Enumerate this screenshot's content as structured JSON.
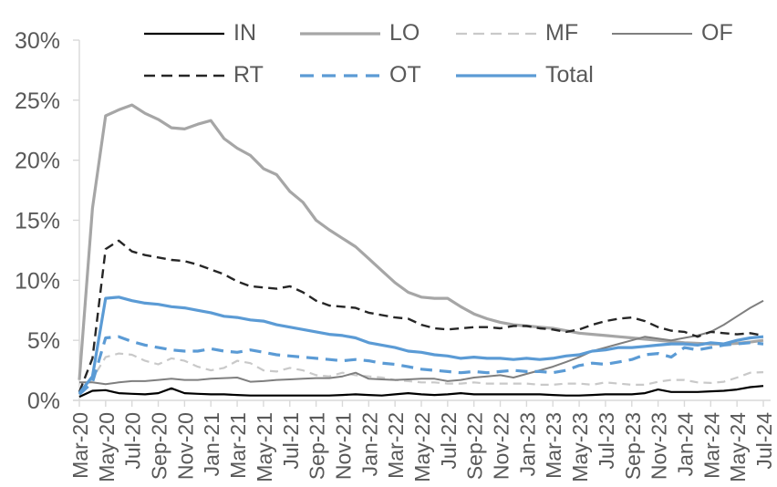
{
  "background": "#FFFFFF",
  "chart_data": {
    "type": "line",
    "title": "",
    "xlabel": "",
    "ylabel": "",
    "grid": false,
    "axis_color": "#D9D9D9",
    "label_color": "#595959",
    "legend_position": "top",
    "legend_rows": [
      [
        "IN",
        "LO",
        "MF",
        "OF"
      ],
      [
        "RT",
        "OT",
        "Total"
      ]
    ],
    "y_axis": {
      "min": 0,
      "max": 30,
      "step": 5,
      "tick_labels": [
        "0%",
        "5%",
        "10%",
        "15%",
        "20%",
        "25%",
        "30%"
      ]
    },
    "x": [
      "Mar-20",
      "Apr-20",
      "May-20",
      "Jun-20",
      "Jul-20",
      "Aug-20",
      "Sep-20",
      "Oct-20",
      "Nov-20",
      "Dec-20",
      "Jan-21",
      "Feb-21",
      "Mar-21",
      "Apr-21",
      "May-21",
      "Jun-21",
      "Jul-21",
      "Aug-21",
      "Sep-21",
      "Oct-21",
      "Nov-21",
      "Dec-21",
      "Jan-22",
      "Feb-22",
      "Mar-22",
      "Apr-22",
      "May-22",
      "Jun-22",
      "Jul-22",
      "Aug-22",
      "Sep-22",
      "Oct-22",
      "Nov-22",
      "Dec-22",
      "Jan-23",
      "Feb-23",
      "Mar-23",
      "Apr-23",
      "May-23",
      "Jun-23",
      "Jul-23",
      "Aug-23",
      "Sep-23",
      "Oct-23",
      "Nov-23",
      "Dec-23",
      "Jan-24",
      "Feb-24",
      "Mar-24",
      "Apr-24",
      "May-24",
      "Jun-24",
      "Jul-24"
    ],
    "x_tick_labels": [
      "Mar-20",
      "May-20",
      "Jul-20",
      "Sep-20",
      "Nov-20",
      "Jan-21",
      "Mar-21",
      "May-21",
      "Jul-21",
      "Sep-21",
      "Nov-21",
      "Jan-22",
      "Mar-22",
      "May-22",
      "Jul-22",
      "Sep-22",
      "Nov-22",
      "Jan-23",
      "Mar-23",
      "May-23",
      "Jul-23",
      "Sep-23",
      "Nov-23",
      "Jan-24",
      "Mar-24",
      "May-24",
      "Jul-24"
    ],
    "series": [
      {
        "name": "IN",
        "color": "#000000",
        "style": "solid",
        "width": 2.2,
        "values": [
          0.3,
          0.8,
          0.85,
          0.6,
          0.55,
          0.5,
          0.6,
          1.0,
          0.6,
          0.55,
          0.5,
          0.5,
          0.45,
          0.4,
          0.4,
          0.4,
          0.4,
          0.4,
          0.4,
          0.4,
          0.45,
          0.5,
          0.45,
          0.4,
          0.5,
          0.6,
          0.5,
          0.45,
          0.5,
          0.6,
          0.5,
          0.5,
          0.5,
          0.5,
          0.5,
          0.5,
          0.45,
          0.4,
          0.4,
          0.45,
          0.5,
          0.5,
          0.5,
          0.6,
          0.9,
          0.7,
          0.7,
          0.7,
          0.75,
          0.8,
          0.9,
          1.1,
          1.2
        ]
      },
      {
        "name": "LO",
        "color": "#A6A6A6",
        "style": "solid",
        "width": 3.2,
        "values": [
          1.7,
          16.0,
          23.7,
          24.2,
          24.6,
          23.9,
          23.4,
          22.7,
          22.6,
          23.0,
          23.3,
          21.8,
          21.0,
          20.4,
          19.3,
          18.8,
          17.4,
          16.5,
          15.0,
          14.2,
          13.5,
          12.8,
          11.8,
          10.8,
          9.8,
          9.0,
          8.6,
          8.5,
          8.5,
          7.8,
          7.2,
          6.8,
          6.5,
          6.3,
          6.2,
          6.1,
          6.0,
          5.8,
          5.6,
          5.5,
          5.4,
          5.3,
          5.2,
          5.1,
          5.0,
          4.9,
          4.8,
          4.75,
          4.7,
          4.7,
          4.75,
          4.85,
          5.0
        ]
      },
      {
        "name": "MF",
        "color": "#C9C9C9",
        "style": "dashed",
        "width": 2.2,
        "values": [
          0.6,
          1.8,
          3.6,
          3.9,
          3.8,
          3.3,
          3.0,
          3.5,
          3.3,
          2.8,
          2.5,
          2.7,
          3.3,
          3.1,
          2.5,
          2.4,
          2.7,
          2.5,
          2.1,
          2.0,
          2.3,
          2.1,
          2.0,
          1.9,
          1.7,
          1.6,
          1.5,
          1.5,
          1.4,
          1.4,
          1.5,
          1.4,
          1.4,
          1.4,
          1.4,
          1.3,
          1.3,
          1.4,
          1.4,
          1.3,
          1.5,
          1.4,
          1.3,
          1.3,
          1.55,
          1.7,
          1.7,
          1.5,
          1.45,
          1.55,
          1.9,
          2.3,
          2.35
        ]
      },
      {
        "name": "OF",
        "color": "#7F7F7F",
        "style": "solid",
        "width": 2.0,
        "values": [
          1.5,
          1.5,
          1.35,
          1.5,
          1.6,
          1.6,
          1.7,
          1.8,
          1.7,
          1.7,
          1.8,
          1.85,
          1.9,
          1.55,
          1.6,
          1.7,
          1.75,
          1.8,
          1.85,
          1.85,
          2.0,
          2.3,
          1.8,
          1.75,
          1.7,
          1.75,
          1.8,
          1.8,
          1.6,
          1.7,
          1.9,
          2.0,
          2.1,
          1.9,
          2.2,
          2.5,
          2.8,
          3.2,
          3.6,
          4.1,
          4.4,
          4.7,
          5.0,
          5.3,
          5.15,
          5.0,
          5.2,
          5.4,
          5.7,
          6.3,
          7.0,
          7.7,
          8.3
        ]
      },
      {
        "name": "RT",
        "color": "#262626",
        "style": "dashed",
        "width": 2.4,
        "values": [
          0.7,
          3.5,
          12.6,
          13.3,
          12.4,
          12.1,
          11.9,
          11.7,
          11.6,
          11.3,
          10.9,
          10.5,
          9.9,
          9.5,
          9.4,
          9.3,
          9.5,
          9.0,
          8.3,
          7.9,
          7.8,
          7.7,
          7.3,
          7.1,
          6.9,
          6.8,
          6.3,
          6.0,
          5.9,
          6.0,
          6.1,
          6.1,
          6.0,
          6.2,
          6.2,
          6.0,
          5.9,
          5.7,
          5.9,
          6.3,
          6.6,
          6.8,
          6.9,
          6.6,
          6.1,
          5.8,
          5.7,
          5.3,
          5.7,
          5.6,
          5.5,
          5.6,
          5.4
        ]
      },
      {
        "name": "OT",
        "color": "#5B9BD5",
        "style": "dashed",
        "width": 3.2,
        "values": [
          0.5,
          1.5,
          5.2,
          5.3,
          4.9,
          4.6,
          4.4,
          4.2,
          4.1,
          4.1,
          4.3,
          4.1,
          4.0,
          4.2,
          4.0,
          3.8,
          3.7,
          3.6,
          3.5,
          3.4,
          3.3,
          3.4,
          3.3,
          3.1,
          3.0,
          2.8,
          2.6,
          2.5,
          2.4,
          2.3,
          2.4,
          2.3,
          2.4,
          2.5,
          2.4,
          2.4,
          2.3,
          2.5,
          2.9,
          3.1,
          3.0,
          3.2,
          3.4,
          3.8,
          3.9,
          3.6,
          4.4,
          4.2,
          4.4,
          4.6,
          4.7,
          4.8,
          4.7
        ]
      },
      {
        "name": "Total",
        "color": "#5B9BD5",
        "style": "solid",
        "width": 3.2,
        "values": [
          0.6,
          2.0,
          8.5,
          8.6,
          8.3,
          8.1,
          8.0,
          7.8,
          7.7,
          7.5,
          7.3,
          7.0,
          6.9,
          6.7,
          6.6,
          6.3,
          6.1,
          5.9,
          5.7,
          5.5,
          5.4,
          5.2,
          4.8,
          4.6,
          4.4,
          4.1,
          4.0,
          3.8,
          3.7,
          3.5,
          3.6,
          3.5,
          3.5,
          3.4,
          3.5,
          3.4,
          3.5,
          3.7,
          3.8,
          4.1,
          4.2,
          4.4,
          4.4,
          4.5,
          4.6,
          4.7,
          4.7,
          4.6,
          4.8,
          4.7,
          5.0,
          5.2,
          5.3
        ]
      }
    ]
  }
}
